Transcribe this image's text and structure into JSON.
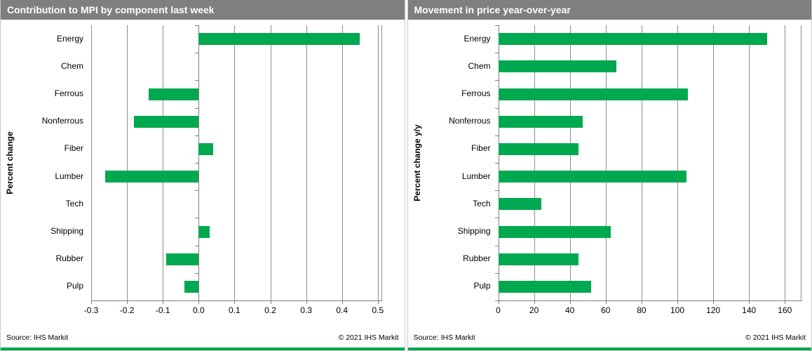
{
  "colors": {
    "bar": "#00a84f",
    "header_bg": "#7f7f7f",
    "header_text": "#ffffff",
    "grid": "#8c8c8c",
    "axis": "#7f7f7f",
    "accent_strip": "#00a84f"
  },
  "panels": [
    {
      "title": "Contribution to MPI by component last week",
      "y_axis_label": "Percent change",
      "source": "Source: IHS Markit",
      "copyright": "© 2021  IHS Markit"
    },
    {
      "title": "Movement in price year-over-year",
      "y_axis_label": "Percent change y/y",
      "source": "Source: IHS Markit",
      "copyright": "© 2021  IHS Markit"
    }
  ],
  "chart_data": [
    {
      "type": "bar",
      "orientation": "horizontal",
      "title": "Contribution to MPI by component last week",
      "categories": [
        "Energy",
        "Chem",
        "Ferrous",
        "Nonferrous",
        "Fiber",
        "Lumber",
        "Tech",
        "Shipping",
        "Rubber",
        "Pulp"
      ],
      "values": [
        0.45,
        0.0,
        -0.14,
        -0.18,
        0.04,
        -0.26,
        0.0,
        0.03,
        -0.09,
        -0.04
      ],
      "xlabel": "",
      "ylabel": "Percent change",
      "xlim": [
        -0.3,
        0.5
      ],
      "xticks": [
        -0.3,
        -0.2,
        -0.1,
        0.0,
        0.1,
        0.2,
        0.3,
        0.4,
        0.5
      ],
      "tick_decimals": 1,
      "grid": true,
      "legend": false
    },
    {
      "type": "bar",
      "orientation": "horizontal",
      "title": "Movement in price year-over-year",
      "categories": [
        "Energy",
        "Chem",
        "Ferrous",
        "Nonferrous",
        "Fiber",
        "Lumber",
        "Tech",
        "Shipping",
        "Rubber",
        "Pulp"
      ],
      "values": [
        150,
        66,
        106,
        47,
        45,
        105,
        24,
        63,
        45,
        52
      ],
      "xlabel": "",
      "ylabel": "Percent change y/y",
      "xlim": [
        0,
        160
      ],
      "xticks": [
        0,
        20,
        40,
        60,
        80,
        100,
        120,
        140,
        160
      ],
      "tick_decimals": 0,
      "grid": true,
      "legend": false
    }
  ]
}
